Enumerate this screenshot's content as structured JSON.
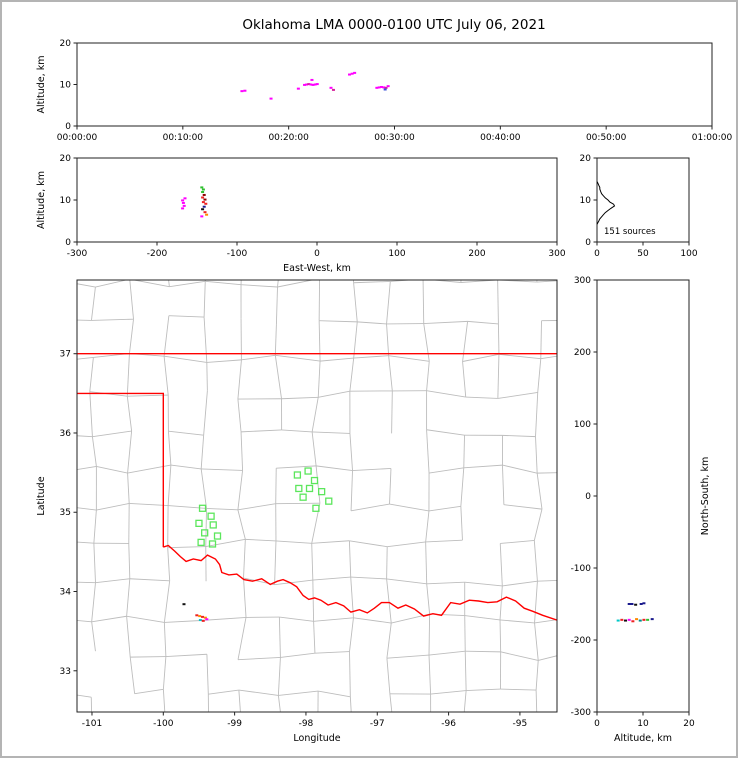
{
  "title": "Oklahoma LMA 0000-0100 UTC July 06, 2021",
  "colors": {
    "mg": "#ff00ff",
    "cr": "#d6219c",
    "rd": "#ee2222",
    "ma": "#8b0000",
    "or": "#ff8800",
    "gn": "#2fbf2f",
    "cy": "#00c8c8",
    "tl": "#008b8b",
    "nv": "#1a1a8c",
    "bk": "#111111",
    "bl": "#3a4fd8"
  },
  "chart_data": [
    {
      "id": "time_height",
      "type": "scatter",
      "xlabel": "",
      "ylabel": "Altitude, km",
      "xlim": [
        0,
        3600
      ],
      "ylim": [
        0,
        20
      ],
      "xticks": [
        {
          "v": 0,
          "label": "00:00:00"
        },
        {
          "v": 600,
          "label": "00:10:00"
        },
        {
          "v": 1200,
          "label": "00:20:00"
        },
        {
          "v": 1800,
          "label": "00:30:00"
        },
        {
          "v": 2400,
          "label": "00:40:00"
        },
        {
          "v": 3000,
          "label": "00:50:00"
        },
        {
          "v": 3600,
          "label": "01:00:00"
        }
      ],
      "yticks": [
        {
          "v": 0,
          "label": "0"
        },
        {
          "v": 10,
          "label": "10"
        },
        {
          "v": 20,
          "label": "20"
        }
      ],
      "points": [
        [
          935,
          8.4,
          "mg"
        ],
        [
          952,
          8.5,
          "mg"
        ],
        [
          1100,
          6.6,
          "mg"
        ],
        [
          1255,
          9.0,
          "mg"
        ],
        [
          1290,
          9.9,
          "mg"
        ],
        [
          1302,
          10.0,
          "mg"
        ],
        [
          1314,
          10.1,
          "cr"
        ],
        [
          1326,
          10.0,
          "mg"
        ],
        [
          1338,
          9.9,
          "mg"
        ],
        [
          1350,
          10.0,
          "mg"
        ],
        [
          1362,
          10.1,
          "mg"
        ],
        [
          1332,
          11.1,
          "mg"
        ],
        [
          1440,
          9.2,
          "mg"
        ],
        [
          1454,
          8.7,
          "cr"
        ],
        [
          1545,
          12.4,
          "mg"
        ],
        [
          1560,
          12.6,
          "mg"
        ],
        [
          1574,
          12.8,
          "mg"
        ],
        [
          1700,
          9.2,
          "mg"
        ],
        [
          1713,
          9.3,
          "mg"
        ],
        [
          1726,
          9.4,
          "mg"
        ],
        [
          1739,
          9.3,
          "mg"
        ],
        [
          1752,
          9.2,
          "cr"
        ],
        [
          1747,
          8.8,
          "bl"
        ],
        [
          1764,
          9.6,
          "mg"
        ]
      ]
    },
    {
      "id": "ew_height",
      "type": "scatter",
      "xlabel": "East-West, km",
      "ylabel": "Altitude, km",
      "xlim": [
        -300,
        300
      ],
      "ylim": [
        0,
        20
      ],
      "xticks": [
        {
          "v": -300,
          "label": "-300"
        },
        {
          "v": -200,
          "label": "-200"
        },
        {
          "v": -100,
          "label": "-100"
        },
        {
          "v": 0,
          "label": "0"
        },
        {
          "v": 100,
          "label": "100"
        },
        {
          "v": 200,
          "label": "200"
        },
        {
          "v": 300,
          "label": "300"
        }
      ],
      "yticks": [
        {
          "v": 0,
          "label": "0"
        },
        {
          "v": 10,
          "label": "10"
        },
        {
          "v": 20,
          "label": "20"
        }
      ],
      "points": [
        [
          -168,
          9.9,
          "mg"
        ],
        [
          -167,
          9.3,
          "mg"
        ],
        [
          -166,
          8.6,
          "mg"
        ],
        [
          -168,
          8.0,
          "mg"
        ],
        [
          -165,
          10.4,
          "mg"
        ],
        [
          -144,
          13.0,
          "gn"
        ],
        [
          -142,
          12.5,
          "gn"
        ],
        [
          -143,
          11.9,
          "gn"
        ],
        [
          -141,
          11.2,
          "ma"
        ],
        [
          -143,
          10.6,
          "rd"
        ],
        [
          -140,
          10.1,
          "ma"
        ],
        [
          -142,
          9.5,
          "rd"
        ],
        [
          -139,
          9.1,
          "rd"
        ],
        [
          -141,
          8.4,
          "nv"
        ],
        [
          -143,
          7.8,
          "bk"
        ],
        [
          -140,
          7.1,
          "rd"
        ],
        [
          -138,
          6.5,
          "or"
        ],
        [
          -144,
          6.1,
          "mg"
        ]
      ]
    },
    {
      "id": "alt_histogram",
      "type": "line",
      "xlabel": "",
      "ylabel": "",
      "annotation": "151 sources",
      "xlim": [
        0,
        100
      ],
      "ylim": [
        0,
        20
      ],
      "xticks": [
        {
          "v": 0,
          "label": "0"
        },
        {
          "v": 50,
          "label": "50"
        },
        {
          "v": 100,
          "label": "100"
        }
      ],
      "yticks": [
        {
          "v": 0,
          "label": "0"
        },
        {
          "v": 10,
          "label": "10"
        },
        {
          "v": 20,
          "label": "20"
        }
      ],
      "profile": [
        [
          0,
          4.2
        ],
        [
          1,
          4.6
        ],
        [
          2,
          5.0
        ],
        [
          3,
          5.5
        ],
        [
          5,
          6.0
        ],
        [
          7,
          6.5
        ],
        [
          9,
          7.0
        ],
        [
          12,
          7.5
        ],
        [
          15,
          8.0
        ],
        [
          19,
          8.6
        ],
        [
          18,
          9.0
        ],
        [
          14,
          9.5
        ],
        [
          12,
          10.0
        ],
        [
          9,
          10.5
        ],
        [
          7,
          11.0
        ],
        [
          5,
          11.5
        ],
        [
          4,
          12.0
        ],
        [
          3,
          12.6
        ],
        [
          3,
          13.0
        ],
        [
          2,
          13.5
        ],
        [
          1,
          14.0
        ],
        [
          0,
          14.4
        ]
      ]
    },
    {
      "id": "map",
      "type": "scatter",
      "xlabel": "Longitude",
      "ylabel": "Latitude",
      "xlim": [
        -101.21,
        -94.48
      ],
      "ylim": [
        32.48,
        37.93
      ],
      "xticks": [
        {
          "v": -101,
          "label": "-101"
        },
        {
          "v": -100,
          "label": "-100"
        },
        {
          "v": -99,
          "label": "-99"
        },
        {
          "v": -98,
          "label": "-98"
        },
        {
          "v": -97,
          "label": "-97"
        },
        {
          "v": -96,
          "label": "-96"
        },
        {
          "v": -95,
          "label": "-95"
        }
      ],
      "yticks": [
        {
          "v": 33,
          "label": "33"
        },
        {
          "v": 34,
          "label": "34"
        },
        {
          "v": 35,
          "label": "35"
        },
        {
          "v": 36,
          "label": "36"
        },
        {
          "v": 37,
          "label": "37"
        }
      ],
      "border_color": "#ff0000",
      "station_color": "#5ce65c",
      "county_grid": {
        "lon0": -101.5,
        "dlon": 0.52,
        "cols": 14,
        "lat0": 32.25,
        "dlat": 0.47,
        "rows": 13,
        "jitter": 0.12,
        "skip": 0.15,
        "seed": 11,
        "color": "#bdbdbd"
      },
      "borders": [
        {
          "name": "kansas-border-line",
          "points": [
            [
              -101.21,
              37.0
            ],
            [
              -94.48,
              37.0
            ]
          ]
        },
        {
          "name": "panhandle-border-line",
          "points": [
            [
              -101.21,
              36.5
            ],
            [
              -100.0,
              36.5
            ],
            [
              -100.0,
              34.56
            ]
          ]
        },
        {
          "name": "red-river-border-line",
          "points": [
            [
              -100.0,
              34.56
            ],
            [
              -99.93,
              34.58
            ],
            [
              -99.84,
              34.51
            ],
            [
              -99.76,
              34.44
            ],
            [
              -99.68,
              34.38
            ],
            [
              -99.58,
              34.41
            ],
            [
              -99.47,
              34.39
            ],
            [
              -99.38,
              34.46
            ],
            [
              -99.27,
              34.41
            ],
            [
              -99.21,
              34.34
            ],
            [
              -99.18,
              34.24
            ],
            [
              -99.08,
              34.21
            ],
            [
              -98.97,
              34.22
            ],
            [
              -98.87,
              34.15
            ],
            [
              -98.75,
              34.13
            ],
            [
              -98.62,
              34.16
            ],
            [
              -98.5,
              34.09
            ],
            [
              -98.4,
              34.13
            ],
            [
              -98.32,
              34.15
            ],
            [
              -98.22,
              34.11
            ],
            [
              -98.13,
              34.06
            ],
            [
              -98.04,
              33.95
            ],
            [
              -97.96,
              33.9
            ],
            [
              -97.88,
              33.92
            ],
            [
              -97.79,
              33.89
            ],
            [
              -97.69,
              33.83
            ],
            [
              -97.58,
              33.86
            ],
            [
              -97.47,
              33.82
            ],
            [
              -97.37,
              33.74
            ],
            [
              -97.25,
              33.77
            ],
            [
              -97.14,
              33.73
            ],
            [
              -97.04,
              33.79
            ],
            [
              -96.94,
              33.86
            ],
            [
              -96.83,
              33.86
            ],
            [
              -96.71,
              33.79
            ],
            [
              -96.6,
              33.83
            ],
            [
              -96.48,
              33.78
            ],
            [
              -96.35,
              33.69
            ],
            [
              -96.22,
              33.72
            ],
            [
              -96.1,
              33.7
            ],
            [
              -95.97,
              33.86
            ],
            [
              -95.84,
              33.84
            ],
            [
              -95.71,
              33.89
            ],
            [
              -95.58,
              33.88
            ],
            [
              -95.45,
              33.86
            ],
            [
              -95.32,
              33.87
            ],
            [
              -95.19,
              33.93
            ],
            [
              -95.06,
              33.88
            ],
            [
              -94.94,
              33.79
            ],
            [
              -94.82,
              33.75
            ],
            [
              -94.68,
              33.7
            ],
            [
              -94.48,
              33.64
            ]
          ]
        }
      ],
      "stations": [
        [
          -99.45,
          35.05
        ],
        [
          -99.33,
          34.95
        ],
        [
          -99.5,
          34.86
        ],
        [
          -99.3,
          34.84
        ],
        [
          -99.42,
          34.74
        ],
        [
          -99.24,
          34.7
        ],
        [
          -99.47,
          34.62
        ],
        [
          -99.31,
          34.6
        ],
        [
          -98.12,
          35.47
        ],
        [
          -97.97,
          35.52
        ],
        [
          -97.88,
          35.4
        ],
        [
          -98.1,
          35.3
        ],
        [
          -97.95,
          35.3
        ],
        [
          -98.04,
          35.19
        ],
        [
          -97.78,
          35.26
        ],
        [
          -97.68,
          35.14
        ],
        [
          -97.86,
          35.05
        ]
      ],
      "points": [
        [
          -99.71,
          33.84,
          "bk"
        ],
        [
          -99.53,
          33.7,
          "rd"
        ],
        [
          -99.49,
          33.69,
          "or"
        ],
        [
          -99.45,
          33.68,
          "rd"
        ],
        [
          -99.41,
          33.67,
          "or"
        ],
        [
          -99.48,
          33.64,
          "cy"
        ],
        [
          -99.44,
          33.63,
          "rd"
        ],
        [
          -99.39,
          33.65,
          "mg"
        ]
      ]
    },
    {
      "id": "ns_height",
      "type": "scatter",
      "xlabel": "Altitude, km",
      "ylabel": "North-South, km",
      "ylabel_side": "right",
      "xlim": [
        0,
        20
      ],
      "ylim": [
        -300,
        300
      ],
      "xticks": [
        {
          "v": 0,
          "label": "0"
        },
        {
          "v": 10,
          "label": "10"
        },
        {
          "v": 20,
          "label": "20"
        }
      ],
      "yticks": [
        {
          "v": 300,
          "label": "300"
        },
        {
          "v": 200,
          "label": "200"
        },
        {
          "v": 100,
          "label": "100"
        },
        {
          "v": 0,
          "label": "0"
        },
        {
          "v": -100,
          "label": "-100"
        },
        {
          "v": -200,
          "label": "-200"
        },
        {
          "v": -300,
          "label": "-300"
        }
      ],
      "points": [
        [
          7.0,
          -150,
          "nv"
        ],
        [
          7.6,
          -150,
          "nv"
        ],
        [
          8.4,
          -151,
          "bk"
        ],
        [
          9.6,
          -150,
          "nv"
        ],
        [
          10.2,
          -149,
          "nv"
        ],
        [
          4.6,
          -173,
          "cy"
        ],
        [
          5.4,
          -172,
          "rd"
        ],
        [
          6.2,
          -173,
          "bk"
        ],
        [
          7.0,
          -172,
          "mg"
        ],
        [
          7.8,
          -174,
          "rd"
        ],
        [
          8.6,
          -171,
          "or"
        ],
        [
          9.4,
          -173,
          "tl"
        ],
        [
          10.2,
          -172,
          "rd"
        ],
        [
          11.0,
          -172,
          "gn"
        ],
        [
          12.0,
          -171,
          "nv"
        ]
      ]
    }
  ]
}
